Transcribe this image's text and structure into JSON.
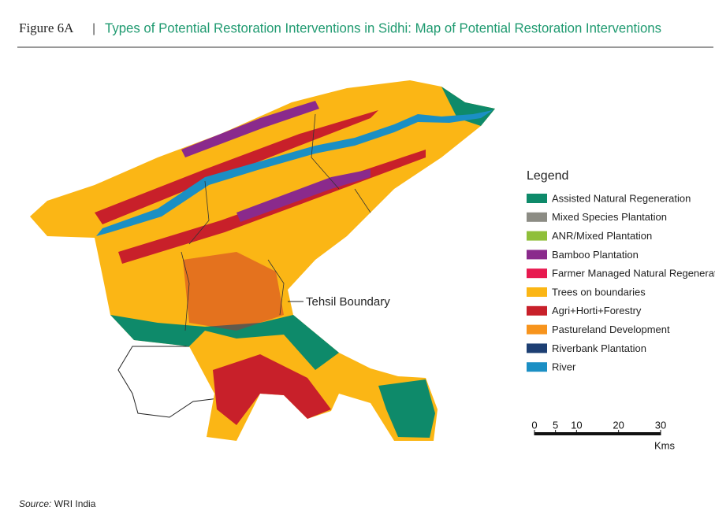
{
  "header": {
    "figure": "Figure 6A",
    "separator": "|",
    "title": "Types of Potential Restoration Interventions in Sidhi: Map of Potential Restoration Interventions"
  },
  "map": {
    "annotation": "Tehsil Boundary"
  },
  "legend": {
    "title": "Legend",
    "items": [
      {
        "label": "Assisted Natural Regeneration",
        "color": "#0e8a6a"
      },
      {
        "label": "Mixed Species Plantation",
        "color": "#8c8c84"
      },
      {
        "label": "ANR/Mixed Plantation",
        "color": "#8fbf3a"
      },
      {
        "label": "Bamboo Plantation",
        "color": "#8a2a8c"
      },
      {
        "label": "Farmer Managed Natural Regeneration",
        "color": "#e8194f"
      },
      {
        "label": "Trees on boundaries",
        "color": "#fbb615"
      },
      {
        "label": "Agri+Horti+Forestry",
        "color": "#c8202a"
      },
      {
        "label": "Pastureland Development",
        "color": "#f7941d"
      },
      {
        "label": "Riverbank Plantation",
        "color": "#1d3f73"
      },
      {
        "label": "River",
        "color": "#1b8fc4"
      }
    ]
  },
  "scale_bar": {
    "ticks": [
      0,
      5,
      10,
      20,
      30
    ],
    "unit": "Kms"
  },
  "source": {
    "label": "Source:",
    "text": "WRI India"
  }
}
